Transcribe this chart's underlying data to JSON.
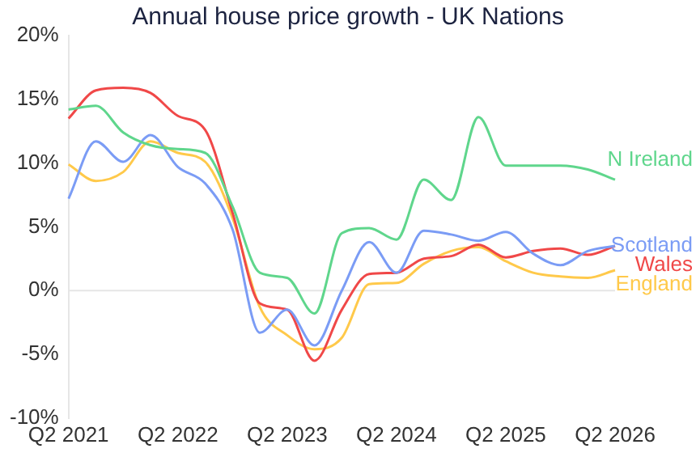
{
  "chart_data": {
    "type": "line",
    "title": "Annual house price growth - UK Nations",
    "categories": [
      "Q2 2021",
      null,
      null,
      null,
      "Q2 2022",
      null,
      null,
      null,
      "Q2 2023",
      null,
      null,
      null,
      "Q2 2024",
      null,
      null,
      null,
      "Q2 2025",
      null,
      null,
      null,
      "Q2 2026"
    ],
    "series": [
      {
        "name": "N Ireland",
        "color": "#5fd68c",
        "values": [
          14.2,
          14.5,
          12.4,
          11.4,
          11.1,
          10.8,
          6.6,
          1.4,
          1.0,
          -1.8,
          4.5,
          4.9,
          4.0,
          8.7,
          7.1,
          13.6,
          9.8,
          9.8,
          9.8,
          9.5,
          8.7
        ]
      },
      {
        "name": "Scotland",
        "color": "#7b9cf5",
        "values": [
          7.2,
          11.7,
          10.1,
          12.2,
          9.7,
          8.4,
          4.8,
          -3.3,
          -1.5,
          -4.3,
          0.0,
          3.8,
          1.4,
          4.7,
          4.4,
          3.9,
          4.6,
          2.9,
          2.0,
          3.1,
          3.5
        ]
      },
      {
        "name": "Wales",
        "color": "#f04848",
        "values": [
          13.5,
          15.7,
          15.9,
          15.5,
          13.7,
          12.6,
          6.1,
          -1.0,
          -1.5,
          -5.5,
          -1.5,
          1.3,
          1.4,
          2.5,
          2.7,
          3.6,
          2.6,
          3.1,
          3.3,
          2.8,
          3.5
        ]
      },
      {
        "name": "England",
        "color": "#ffc94a",
        "values": [
          9.9,
          8.6,
          9.3,
          11.7,
          10.8,
          10.1,
          5.7,
          -1.3,
          -3.5,
          -4.6,
          -3.7,
          0.5,
          0.6,
          2.1,
          3.1,
          3.4,
          2.3,
          1.4,
          1.1,
          1.0,
          1.6
        ]
      }
    ],
    "ylim": [
      -10,
      20
    ],
    "yticks": [
      {
        "value": -10,
        "label": "-10%"
      },
      {
        "value": -5,
        "label": "-5%"
      },
      {
        "value": 0,
        "label": "0%"
      },
      {
        "value": 5,
        "label": "5%"
      },
      {
        "value": 10,
        "label": "10%"
      },
      {
        "value": 15,
        "label": "15%"
      },
      {
        "value": 20,
        "label": "20%"
      }
    ],
    "ref_lines": [
      {
        "axis": "y",
        "value": 0,
        "color": "#e6e6e6"
      }
    ],
    "grid": false,
    "legend": false,
    "marker": "none",
    "line_style": "solid"
  }
}
